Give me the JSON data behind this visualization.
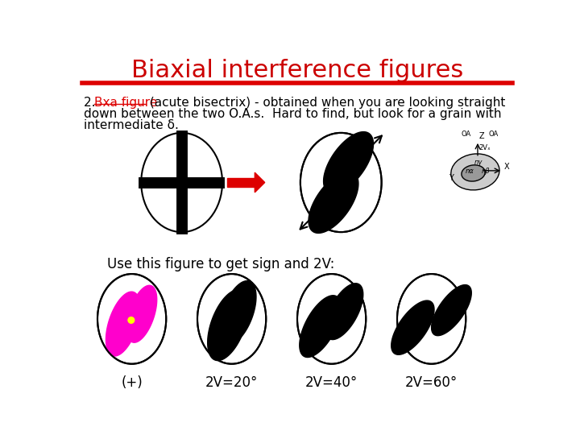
{
  "title": "Biaxial interference figures",
  "title_color": "#CC0000",
  "bg_color": "#ffffff",
  "red": "#DD0000",
  "black": "#000000",
  "magenta": "#FF00CC",
  "yellow": "#FFFF00",
  "text_use": "Use this figure to get sign and 2V:",
  "bottom_labels": [
    "(+)",
    "2V=20°",
    "2V=40°",
    "2V=60°"
  ]
}
